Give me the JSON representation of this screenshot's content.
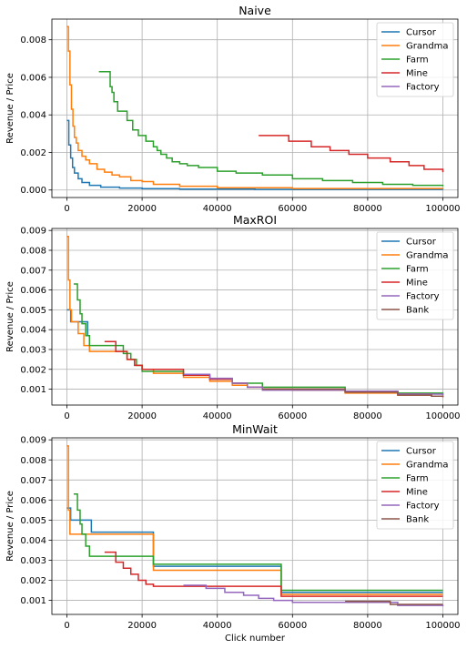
{
  "chart_data": [
    {
      "type": "line",
      "title": "Naive",
      "xlabel": "",
      "ylabel": "Revenue / Price",
      "xlim": [
        -4000,
        104000
      ],
      "ylim": [
        -0.0004,
        0.0091
      ],
      "xticks": [
        0,
        20000,
        40000,
        60000,
        80000,
        100000
      ],
      "yticks": [
        0.0,
        0.002,
        0.004,
        0.006,
        0.008
      ],
      "ytick_labels": [
        "0.000",
        "0.002",
        "0.004",
        "0.006",
        "0.008"
      ],
      "grid": true,
      "legend_position": "top-right",
      "series": [
        {
          "name": "Cursor",
          "color": "#1f77b4",
          "step": true,
          "x": [
            0,
            500,
            1000,
            1500,
            2000,
            3000,
            4000,
            6000,
            9000,
            14000,
            20000,
            30000,
            50000,
            100000
          ],
          "y": [
            0.0037,
            0.0024,
            0.0017,
            0.0012,
            0.0009,
            0.0006,
            0.0004,
            0.00025,
            0.00015,
            0.0001,
            7e-05,
            5e-05,
            3e-05,
            2e-05
          ]
        },
        {
          "name": "Grandma",
          "color": "#ff7f0e",
          "step": true,
          "x": [
            0,
            400,
            800,
            1200,
            1600,
            2000,
            2500,
            3000,
            4000,
            5000,
            6000,
            8000,
            10000,
            12000,
            14000,
            17000,
            20000,
            23000,
            30000,
            40000,
            60000,
            100000
          ],
          "y": [
            0.0087,
            0.0074,
            0.0056,
            0.0043,
            0.0034,
            0.0028,
            0.0025,
            0.0021,
            0.0018,
            0.0016,
            0.0014,
            0.0011,
            0.00095,
            0.0008,
            0.0007,
            0.0005,
            0.00045,
            0.0003,
            0.0002,
            0.00012,
            8e-05,
            7e-05
          ]
        },
        {
          "name": "Farm",
          "color": "#2ca02c",
          "step": true,
          "x": [
            8500,
            11000,
            11500,
            12000,
            12500,
            13500,
            16000,
            17500,
            19000,
            21000,
            23000,
            24000,
            25000,
            26500,
            28000,
            30000,
            32000,
            35000,
            40000,
            45000,
            52000,
            60000,
            68000,
            76000,
            84000,
            92000,
            100000
          ],
          "y": [
            0.0063,
            0.0063,
            0.0055,
            0.0052,
            0.0047,
            0.0042,
            0.0037,
            0.0032,
            0.0029,
            0.0026,
            0.0023,
            0.0021,
            0.0019,
            0.0017,
            0.0015,
            0.0014,
            0.0013,
            0.0012,
            0.001,
            0.0009,
            0.0008,
            0.0006,
            0.0005,
            0.0004,
            0.0003,
            0.00025,
            0.0002
          ]
        },
        {
          "name": "Mine",
          "color": "#d62728",
          "step": true,
          "x": [
            51000,
            59000,
            65000,
            70000,
            75000,
            80000,
            86000,
            91000,
            95000,
            100000
          ],
          "y": [
            0.0029,
            0.0026,
            0.0023,
            0.0021,
            0.0019,
            0.0017,
            0.0015,
            0.0013,
            0.0011,
            0.00095
          ]
        },
        {
          "name": "Factory",
          "color": "#9467bd",
          "step": true,
          "x": [],
          "y": []
        }
      ]
    },
    {
      "type": "line",
      "title": "MaxROI",
      "xlabel": "",
      "ylabel": "Revenue / Price",
      "xlim": [
        -4000,
        104000
      ],
      "ylim": [
        0.0002,
        0.0091
      ],
      "xticks": [
        0,
        20000,
        40000,
        60000,
        80000,
        100000
      ],
      "yticks": [
        0.001,
        0.002,
        0.003,
        0.004,
        0.005,
        0.006,
        0.007,
        0.008,
        0.009
      ],
      "ytick_labels": [
        "0.001",
        "0.002",
        "0.003",
        "0.004",
        "0.005",
        "0.006",
        "0.007",
        "0.008",
        "0.009"
      ],
      "grid": true,
      "legend_position": "top-right",
      "series": [
        {
          "name": "Cursor",
          "color": "#1f77b4",
          "step": true,
          "x": [
            0,
            1000,
            4000,
            5500
          ],
          "y": [
            0.005,
            0.0044,
            0.0044,
            0.0037
          ]
        },
        {
          "name": "Grandma",
          "color": "#ff7f0e",
          "step": true,
          "x": [
            0,
            400,
            800,
            1200,
            2000,
            3000,
            4500,
            6000,
            13000,
            16000,
            18000,
            20000,
            23000,
            31000,
            38000,
            44000,
            48000,
            52000,
            60000,
            74000,
            88000,
            97000,
            100000
          ],
          "y": [
            0.0087,
            0.0065,
            0.005,
            0.0044,
            0.0044,
            0.0038,
            0.0032,
            0.0029,
            0.0029,
            0.0025,
            0.0022,
            0.002,
            0.0018,
            0.0016,
            0.0014,
            0.0012,
            0.0011,
            0.001,
            0.00095,
            0.0008,
            0.0007,
            0.00065,
            0.0006
          ]
        },
        {
          "name": "Farm",
          "color": "#2ca02c",
          "step": true,
          "x": [
            1800,
            2800,
            3500,
            4000,
            5000,
            6000,
            13000,
            15000,
            17000,
            18500,
            20000,
            31000,
            38000,
            44000,
            52000,
            74000,
            88000,
            100000
          ],
          "y": [
            0.0063,
            0.0055,
            0.0048,
            0.0043,
            0.0037,
            0.0032,
            0.0032,
            0.0028,
            0.0025,
            0.0022,
            0.0019,
            0.0017,
            0.0015,
            0.0013,
            0.0011,
            0.0009,
            0.0008,
            0.0007
          ]
        },
        {
          "name": "Mine",
          "color": "#d62728",
          "step": true,
          "x": [
            10000,
            13000,
            16000,
            18000,
            20000,
            31000,
            38000,
            44000,
            48000,
            52000,
            74000,
            88000,
            97000,
            100000
          ],
          "y": [
            0.0034,
            0.0029,
            0.0025,
            0.0022,
            0.002,
            0.0017,
            0.0015,
            0.0013,
            0.0011,
            0.001,
            0.0009,
            0.00075,
            0.00065,
            0.0006
          ]
        },
        {
          "name": "Factory",
          "color": "#9467bd",
          "step": true,
          "x": [
            31000,
            38000,
            44000,
            48000,
            52000,
            74000,
            88000,
            100000
          ],
          "y": [
            0.00175,
            0.00155,
            0.0013,
            0.0011,
            0.00095,
            0.0009,
            0.00075,
            0.0007
          ]
        },
        {
          "name": "Bank",
          "color": "#8c564b",
          "step": true,
          "x": [
            52000,
            74000,
            88000,
            97000,
            100000
          ],
          "y": [
            0.001,
            0.00085,
            0.0007,
            0.00065,
            0.0006
          ]
        }
      ]
    },
    {
      "type": "line",
      "title": "MinWait",
      "xlabel": "Click number",
      "ylabel": "Revenue / Price",
      "xlim": [
        -4000,
        104000
      ],
      "ylim": [
        0.0003,
        0.0091
      ],
      "xticks": [
        0,
        20000,
        40000,
        60000,
        80000,
        100000
      ],
      "yticks": [
        0.001,
        0.002,
        0.003,
        0.004,
        0.005,
        0.006,
        0.007,
        0.008,
        0.009
      ],
      "ytick_labels": [
        "0.001",
        "0.002",
        "0.003",
        "0.004",
        "0.005",
        "0.006",
        "0.007",
        "0.008",
        "0.009"
      ],
      "grid": true,
      "legend_position": "top-right",
      "series": [
        {
          "name": "Cursor",
          "color": "#1f77b4",
          "step": true,
          "x": [
            0,
            1000,
            6500,
            23000,
            57000,
            100000
          ],
          "y": [
            0.0056,
            0.005,
            0.0044,
            0.0027,
            0.0014,
            0.0014
          ]
        },
        {
          "name": "Grandma",
          "color": "#ff7f0e",
          "step": true,
          "x": [
            0,
            400,
            800,
            23000,
            57000,
            100000
          ],
          "y": [
            0.0087,
            0.0055,
            0.0043,
            0.0025,
            0.0013,
            0.0013
          ]
        },
        {
          "name": "Farm",
          "color": "#2ca02c",
          "step": true,
          "x": [
            1800,
            2800,
            3500,
            4000,
            5000,
            6000,
            23000,
            57000,
            100000
          ],
          "y": [
            0.0063,
            0.0055,
            0.0048,
            0.0043,
            0.0037,
            0.0032,
            0.0028,
            0.0015,
            0.0015
          ]
        },
        {
          "name": "Mine",
          "color": "#d62728",
          "step": true,
          "x": [
            10000,
            13000,
            15000,
            17000,
            19000,
            21000,
            23000,
            57000,
            100000
          ],
          "y": [
            0.0034,
            0.0029,
            0.0026,
            0.0023,
            0.002,
            0.0018,
            0.0017,
            0.0012,
            0.0012
          ]
        },
        {
          "name": "Factory",
          "color": "#9467bd",
          "step": true,
          "x": [
            31000,
            37000,
            42000,
            47000,
            51000,
            55000,
            60000,
            74000,
            88000,
            100000
          ],
          "y": [
            0.00175,
            0.0016,
            0.0014,
            0.00125,
            0.0011,
            0.001,
            0.0009,
            0.0009,
            0.00075,
            0.0007
          ]
        },
        {
          "name": "Bank",
          "color": "#8c564b",
          "step": true,
          "x": [
            74000,
            86000,
            100000
          ],
          "y": [
            0.00095,
            0.0008,
            0.0008
          ]
        }
      ]
    }
  ]
}
